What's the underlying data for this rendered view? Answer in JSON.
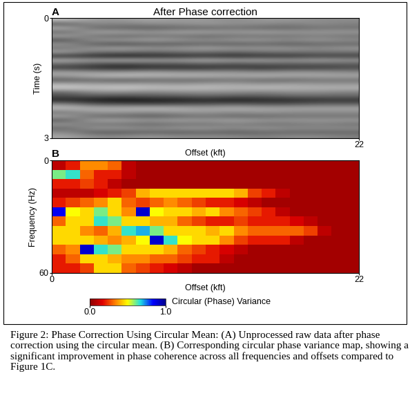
{
  "chart_data": [
    {
      "type": "heatmap",
      "title": "After Phase correction",
      "annotations": [
        "A"
      ],
      "x_label": "Offset (kft)",
      "y_label": "Time (s)",
      "xlim": [
        0,
        22
      ],
      "xticks": [
        22
      ],
      "ylim": [
        3,
        0
      ],
      "yticks": [
        0,
        3
      ],
      "cell_range": [
        -1,
        1
      ],
      "cells": [
        [
          0.5,
          0.2,
          0.2,
          0.3,
          0.2,
          0.2,
          0.1,
          0.2,
          0.2,
          0.1,
          0.1
        ],
        [
          -0.3,
          0.1,
          0.0,
          0.1,
          0.1,
          0.2,
          0.1,
          0.1,
          0.0,
          0.1,
          0.0
        ],
        [
          0.4,
          -0.2,
          -0.2,
          -0.3,
          -0.2,
          -0.2,
          -0.1,
          -0.2,
          -0.2,
          -0.1,
          -0.1
        ],
        [
          -0.2,
          0.3,
          0.3,
          0.2,
          0.3,
          0.3,
          0.2,
          0.3,
          0.2,
          0.2,
          0.2
        ],
        [
          0.3,
          -0.1,
          -0.2,
          -0.1,
          -0.1,
          -0.2,
          -0.1,
          -0.1,
          -0.1,
          0.0,
          -0.1
        ],
        [
          -0.4,
          0.2,
          0.2,
          0.3,
          0.2,
          0.1,
          0.2,
          0.2,
          0.1,
          0.2,
          0.1
        ],
        [
          0.2,
          -0.3,
          -0.4,
          -0.3,
          -0.3,
          -0.2,
          -0.3,
          -0.2,
          -0.3,
          -0.2,
          -0.2
        ],
        [
          -0.1,
          0.2,
          0.3,
          0.2,
          0.2,
          0.3,
          0.2,
          0.2,
          0.2,
          0.1,
          0.2
        ],
        [
          0.3,
          -0.1,
          -0.1,
          -0.2,
          -0.1,
          -0.1,
          -0.2,
          -0.1,
          -0.1,
          -0.1,
          -0.1
        ],
        [
          -0.6,
          -0.7,
          -0.8,
          -0.7,
          -0.7,
          -0.6,
          -0.7,
          -0.6,
          -0.6,
          -0.5,
          -0.5
        ],
        [
          0.4,
          0.3,
          0.4,
          0.3,
          0.3,
          0.4,
          0.3,
          0.3,
          0.2,
          0.3,
          0.2
        ],
        [
          -0.2,
          -0.4,
          -0.5,
          -0.4,
          -0.4,
          -0.3,
          -0.4,
          -0.3,
          -0.3,
          -0.3,
          -0.3
        ],
        [
          -0.5,
          -0.6,
          -0.7,
          -0.6,
          -0.6,
          -0.6,
          -0.5,
          -0.6,
          -0.5,
          -0.5,
          -0.4
        ],
        [
          0.3,
          0.2,
          0.2,
          0.3,
          0.2,
          0.2,
          0.2,
          0.1,
          0.2,
          0.2,
          0.1
        ],
        [
          0.2,
          0.4,
          0.5,
          0.4,
          0.4,
          0.4,
          0.3,
          0.4,
          0.3,
          0.3,
          0.3
        ],
        [
          -0.3,
          -0.2,
          -0.3,
          -0.2,
          -0.2,
          -0.2,
          -0.1,
          -0.2,
          -0.2,
          -0.1,
          -0.1
        ],
        [
          0.4,
          0.3,
          0.3,
          0.3,
          0.2,
          0.3,
          0.3,
          0.2,
          0.3,
          0.2,
          0.2
        ],
        [
          0.6,
          0.5,
          0.6,
          0.5,
          0.5,
          0.5,
          0.4,
          0.5,
          0.4,
          0.4,
          0.4
        ],
        [
          -0.2,
          0.1,
          0.1,
          0.0,
          0.1,
          0.1,
          0.1,
          0.0,
          0.1,
          0.1,
          0.0
        ],
        [
          -0.4,
          -0.3,
          -0.4,
          -0.3,
          -0.3,
          -0.2,
          -0.3,
          -0.3,
          -0.2,
          -0.2,
          -0.2
        ],
        [
          -0.7,
          -0.8,
          -0.9,
          -0.8,
          -0.8,
          -0.7,
          -0.8,
          -0.7,
          -0.7,
          -0.6,
          -0.6
        ],
        [
          0.1,
          -0.3,
          -0.3,
          -0.4,
          -0.3,
          -0.3,
          -0.2,
          -0.3,
          -0.3,
          -0.2,
          -0.2
        ],
        [
          0.5,
          0.4,
          0.4,
          0.5,
          0.4,
          0.3,
          0.4,
          0.3,
          0.3,
          0.3,
          0.3
        ],
        [
          -0.1,
          0.2,
          0.2,
          0.1,
          0.2,
          0.2,
          0.1,
          0.2,
          0.1,
          0.1,
          0.1
        ],
        [
          0.3,
          -0.2,
          -0.2,
          -0.3,
          -0.2,
          -0.1,
          -0.2,
          -0.2,
          -0.1,
          -0.1,
          -0.1
        ],
        [
          -0.3,
          0.3,
          0.3,
          0.2,
          0.3,
          0.2,
          0.3,
          0.2,
          0.2,
          0.2,
          0.2
        ],
        [
          0.2,
          -0.1,
          -0.1,
          -0.2,
          -0.1,
          -0.1,
          0.0,
          -0.1,
          -0.1,
          0.0,
          -0.1
        ],
        [
          -0.2,
          0.2,
          0.2,
          0.1,
          0.2,
          0.2,
          0.1,
          0.2,
          0.1,
          0.1,
          0.1
        ],
        [
          0.1,
          -0.3,
          -0.3,
          -0.2,
          -0.3,
          -0.2,
          -0.3,
          -0.2,
          -0.2,
          -0.2,
          -0.2
        ],
        [
          0.3,
          0.1,
          0.1,
          0.2,
          0.1,
          0.1,
          0.1,
          0.0,
          0.1,
          0.1,
          0.0
        ]
      ]
    },
    {
      "type": "heatmap",
      "annotations": [
        "B"
      ],
      "x_label": "Offset (kft)",
      "y_label": "Frequency (Hz)",
      "xlim": [
        0,
        22
      ],
      "xticks": [
        0,
        22
      ],
      "ylim": [
        60,
        0
      ],
      "yticks": [
        0,
        60
      ],
      "colorbar": {
        "range": [
          0,
          1
        ],
        "ticks": [
          {
            "value": 0,
            "label": "0.0"
          },
          {
            "value": 1,
            "label": "1.0"
          }
        ],
        "label": "Circular (Phase) Variance"
      },
      "cells": [
        [
          0.1,
          0.2,
          0.35,
          0.35,
          0.3,
          0.1,
          0.05,
          0.05,
          0.05,
          0.05,
          0.05,
          0.05,
          0.05,
          0.05,
          0.05,
          0.05,
          0.05,
          0.05,
          0.05,
          0.05,
          0.05,
          0.05
        ],
        [
          0.6,
          0.65,
          0.3,
          0.2,
          0.2,
          0.1,
          0.05,
          0.05,
          0.05,
          0.05,
          0.05,
          0.05,
          0.05,
          0.05,
          0.05,
          0.05,
          0.05,
          0.05,
          0.05,
          0.05,
          0.05,
          0.05
        ],
        [
          0.2,
          0.2,
          0.25,
          0.2,
          0.1,
          0.05,
          0.05,
          0.05,
          0.05,
          0.05,
          0.05,
          0.05,
          0.05,
          0.05,
          0.05,
          0.05,
          0.05,
          0.05,
          0.05,
          0.05,
          0.05,
          0.05
        ],
        [
          0.1,
          0.1,
          0.1,
          0.15,
          0.2,
          0.25,
          0.4,
          0.45,
          0.45,
          0.45,
          0.45,
          0.45,
          0.45,
          0.4,
          0.25,
          0.2,
          0.1,
          0.05,
          0.05,
          0.05,
          0.05,
          0.05
        ],
        [
          0.2,
          0.25,
          0.3,
          0.35,
          0.45,
          0.3,
          0.25,
          0.3,
          0.35,
          0.3,
          0.25,
          0.2,
          0.2,
          0.15,
          0.1,
          0.05,
          0.05,
          0.05,
          0.05,
          0.05,
          0.05,
          0.05
        ],
        [
          0.85,
          0.5,
          0.45,
          0.6,
          0.45,
          0.35,
          0.9,
          0.5,
          0.45,
          0.45,
          0.4,
          0.45,
          0.35,
          0.3,
          0.25,
          0.2,
          0.1,
          0.05,
          0.05,
          0.05,
          0.05,
          0.05
        ],
        [
          0.3,
          0.45,
          0.45,
          0.65,
          0.6,
          0.45,
          0.45,
          0.4,
          0.4,
          0.3,
          0.25,
          0.2,
          0.2,
          0.25,
          0.2,
          0.2,
          0.2,
          0.15,
          0.1,
          0.05,
          0.05,
          0.05
        ],
        [
          0.45,
          0.45,
          0.35,
          0.3,
          0.4,
          0.65,
          0.7,
          0.6,
          0.45,
          0.45,
          0.45,
          0.4,
          0.45,
          0.35,
          0.3,
          0.3,
          0.3,
          0.3,
          0.25,
          0.1,
          0.05,
          0.05
        ],
        [
          0.45,
          0.45,
          0.45,
          0.4,
          0.35,
          0.4,
          0.5,
          0.9,
          0.65,
          0.5,
          0.45,
          0.45,
          0.35,
          0.25,
          0.2,
          0.2,
          0.2,
          0.1,
          0.05,
          0.05,
          0.05,
          0.05
        ],
        [
          0.3,
          0.35,
          0.9,
          0.65,
          0.6,
          0.45,
          0.45,
          0.45,
          0.4,
          0.3,
          0.25,
          0.2,
          0.15,
          0.1,
          0.05,
          0.05,
          0.05,
          0.05,
          0.05,
          0.05,
          0.05,
          0.05
        ],
        [
          0.2,
          0.3,
          0.45,
          0.45,
          0.4,
          0.35,
          0.35,
          0.3,
          0.3,
          0.25,
          0.2,
          0.2,
          0.1,
          0.05,
          0.05,
          0.05,
          0.05,
          0.05,
          0.05,
          0.05,
          0.05,
          0.05
        ],
        [
          0.2,
          0.2,
          0.25,
          0.45,
          0.45,
          0.3,
          0.25,
          0.2,
          0.15,
          0.1,
          0.05,
          0.05,
          0.05,
          0.05,
          0.05,
          0.05,
          0.05,
          0.05,
          0.05,
          0.05,
          0.05,
          0.05
        ]
      ]
    }
  ],
  "caption": "Figure 2: Phase Correction Using Circular Mean: (A) Unprocessed raw data after phase correction using the circular mean. (B) Corresponding circular phase variance map, showing a significant improvement in phase coherence across all frequencies and offsets compared to Figure 1C."
}
